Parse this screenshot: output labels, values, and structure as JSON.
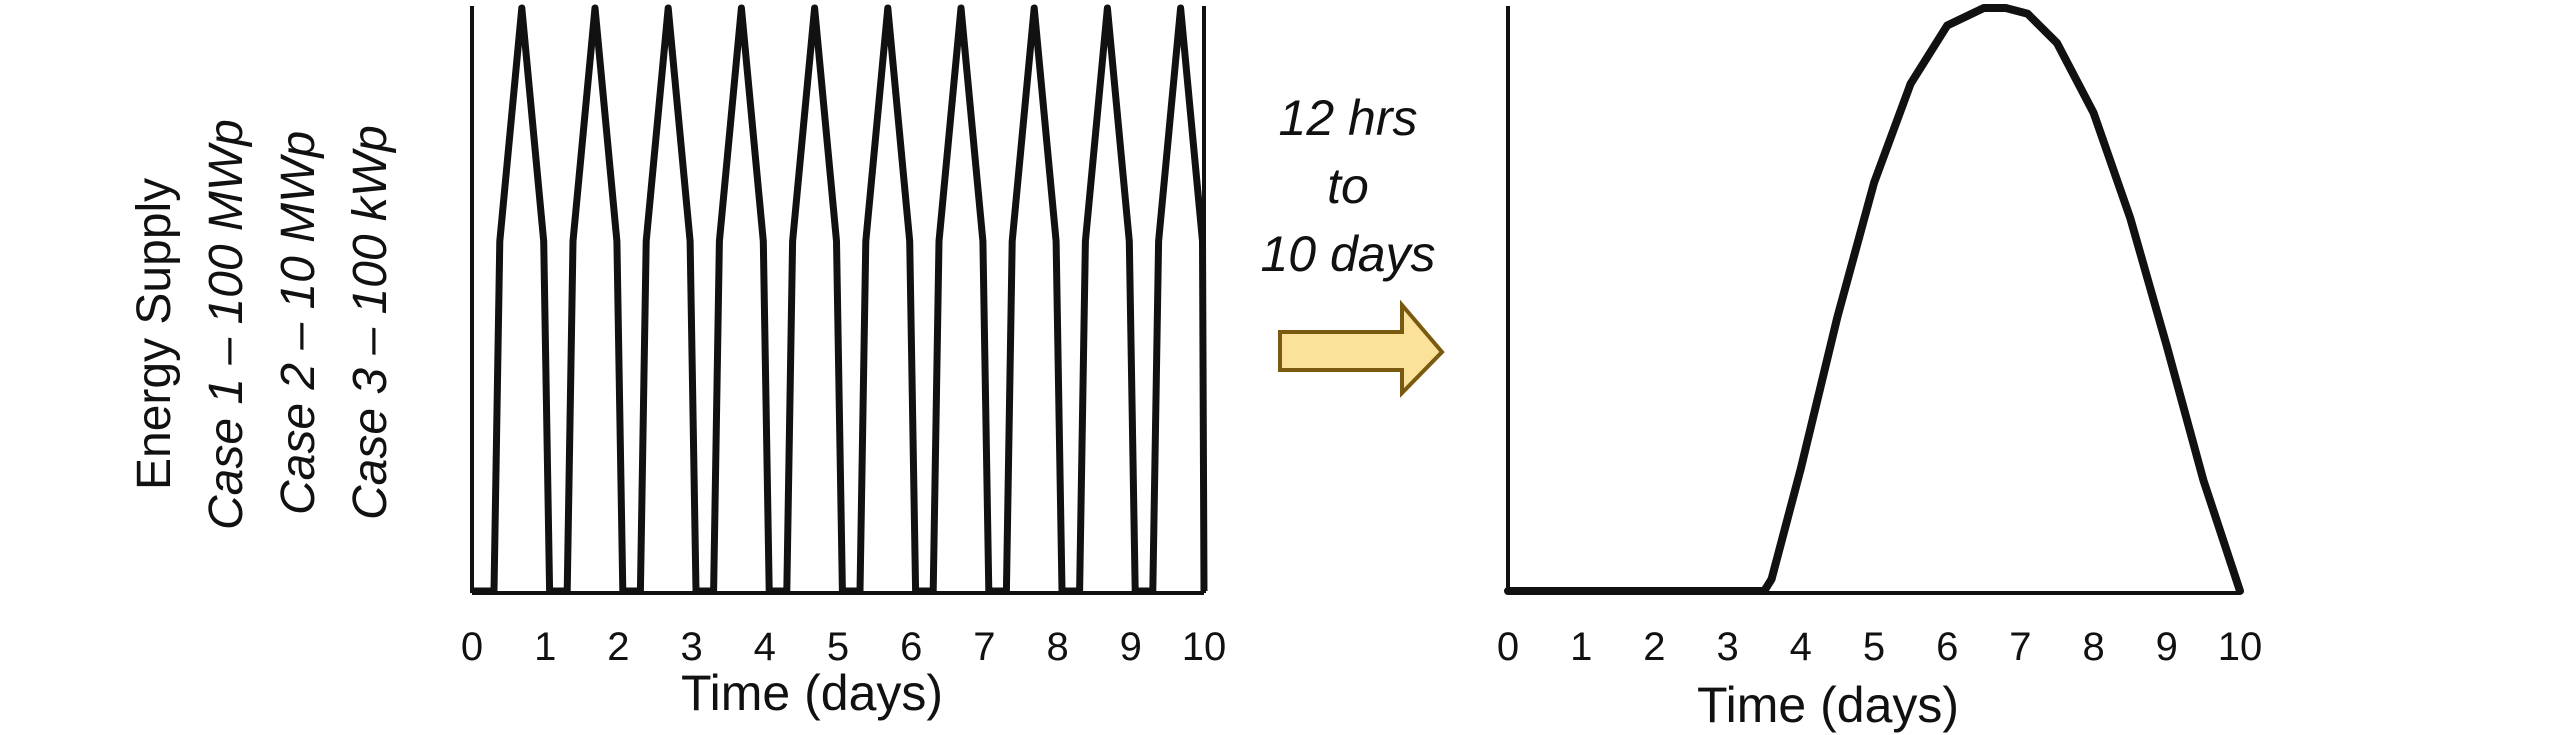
{
  "y_axis_title": {
    "main": "Energy Supply",
    "cases": [
      "Case 1 – 100 MWp",
      "Case 2 – 10 MWp",
      "Case 3 – 100 kWp"
    ]
  },
  "arrow": {
    "lines": [
      "12 hrs",
      "to",
      "10 days"
    ],
    "fill_color": "#FBE29A",
    "stroke_color": "#7A5A10"
  },
  "chart_data": [
    {
      "type": "line",
      "xlabel": "Time (days)",
      "ylabel": "",
      "xlim": [
        0,
        10
      ],
      "ylim": [
        0,
        1
      ],
      "x_ticks": [
        "0",
        "1",
        "2",
        "3",
        "4",
        "5",
        "6",
        "7",
        "8",
        "9",
        "10"
      ],
      "grid": false,
      "legend": "none",
      "series": [
        {
          "x": [
            0,
            0.3,
            0.38,
            0.68,
            0.98,
            1.06,
            1.3,
            1.38,
            1.68,
            1.98,
            2.06,
            2.3,
            2.38,
            2.68,
            2.98,
            3.06,
            3.3,
            3.38,
            3.68,
            3.98,
            4.06,
            4.3,
            4.38,
            4.68,
            4.98,
            5.06,
            5.3,
            5.38,
            5.68,
            5.98,
            6.06,
            6.3,
            6.38,
            6.68,
            6.98,
            7.06,
            7.3,
            7.38,
            7.68,
            7.98,
            8.06,
            8.3,
            8.38,
            8.68,
            8.98,
            9.06,
            9.3,
            9.38,
            9.68,
            9.98,
            10.0
          ],
          "y": [
            0,
            0,
            0.6,
            1,
            0.6,
            0,
            0,
            0.6,
            1,
            0.6,
            0,
            0,
            0.6,
            1,
            0.6,
            0,
            0,
            0.6,
            1,
            0.6,
            0,
            0,
            0.6,
            1,
            0.6,
            0,
            0,
            0.6,
            1,
            0.6,
            0,
            0,
            0.6,
            1,
            0.6,
            0,
            0,
            0.6,
            1,
            0.6,
            0,
            0,
            0.6,
            1,
            0.6,
            0,
            0,
            0.6,
            1,
            0.6,
            0
          ]
        }
      ]
    },
    {
      "type": "line",
      "xlabel": "Time (days)",
      "ylabel": "",
      "xlim": [
        0,
        10
      ],
      "ylim": [
        0,
        1
      ],
      "x_ticks": [
        "0",
        "1",
        "2",
        "3",
        "4",
        "5",
        "6",
        "7",
        "8",
        "9",
        "10"
      ],
      "grid": false,
      "legend": "none",
      "series": [
        {
          "x": [
            0,
            3.5,
            3.6,
            4.0,
            4.5,
            5.0,
            5.5,
            6.0,
            6.5,
            6.8,
            7.1,
            7.5,
            8.0,
            8.5,
            9.0,
            9.5,
            10.0
          ],
          "y": [
            0,
            0,
            0.02,
            0.21,
            0.47,
            0.7,
            0.87,
            0.97,
            1.0,
            1.0,
            0.99,
            0.94,
            0.82,
            0.64,
            0.42,
            0.19,
            0
          ]
        }
      ]
    }
  ]
}
